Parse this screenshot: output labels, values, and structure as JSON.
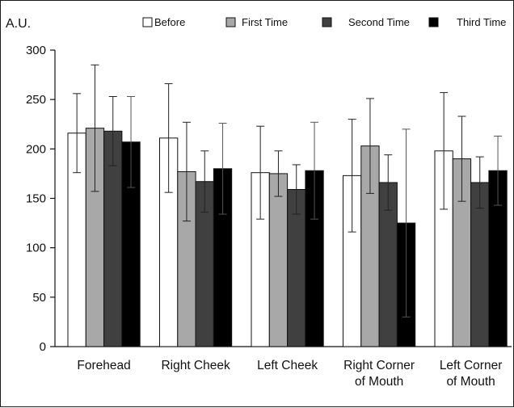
{
  "chart_data": {
    "type": "bar",
    "ylabel": "A.U.",
    "ylim": [
      0,
      300
    ],
    "yticks": [
      0,
      50,
      100,
      150,
      200,
      250,
      300
    ],
    "categories": [
      [
        "Forehead"
      ],
      [
        "Right Cheek"
      ],
      [
        "Left Cheek"
      ],
      [
        "Right Corner",
        "of Mouth"
      ],
      [
        "Left Corner",
        "of Mouth"
      ]
    ],
    "series": [
      {
        "name": "Before",
        "color": "#ffffff",
        "values": [
          216,
          211,
          176,
          173,
          198
        ],
        "error": [
          40,
          55,
          47,
          57,
          59
        ]
      },
      {
        "name": "First Time",
        "color": "#a8a8a8",
        "values": [
          221,
          177,
          175,
          203,
          190
        ],
        "error": [
          64,
          50,
          23,
          48,
          43
        ]
      },
      {
        "name": "Second Time",
        "color": "#404040",
        "values": [
          218,
          167,
          159,
          166,
          166
        ],
        "error": [
          35,
          31,
          25,
          28,
          26
        ]
      },
      {
        "name": "Third Time",
        "color": "#000000",
        "values": [
          207,
          180,
          178,
          125,
          178
        ],
        "error": [
          46,
          46,
          49,
          95,
          35
        ]
      }
    ],
    "legend": "top",
    "grid": false
  }
}
